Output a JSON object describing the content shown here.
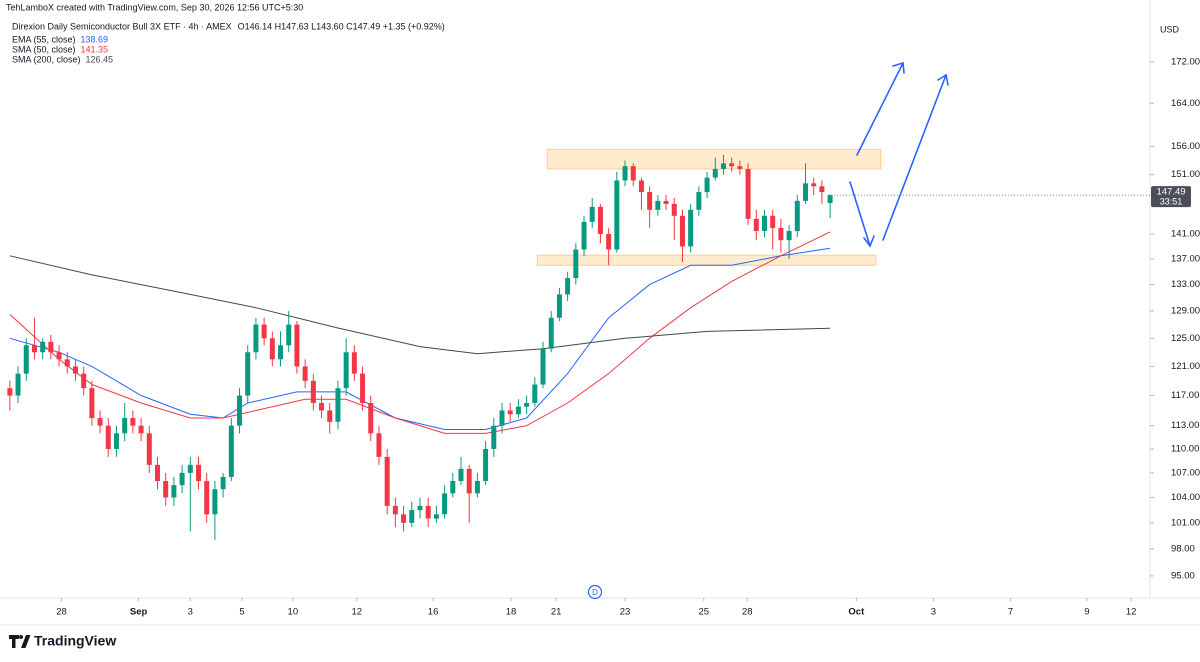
{
  "chart_data": {
    "type": "candlestick",
    "credit": "TehLamboX created with TradingView.com, Sep 30, 2026 12:56 UTC+5:30",
    "title": "Direxion Daily Semiconductor Bull 3X ETF · 4h · AMEX",
    "ohlc_text": "O146.14 H147.63 L143.60 C147.49 +1.35 (+0.92%)",
    "currency": "USD",
    "countdown": "33:51",
    "event_marker": "D",
    "brand": "TradingView",
    "log_scale": true,
    "grid": false,
    "up_color": "#089981",
    "down_color": "#f23645",
    "ylim": [
      92.6,
      181.6
    ],
    "yticks": [
      {
        "value": 172,
        "label": "172.00"
      },
      {
        "value": 164,
        "label": "164.00"
      },
      {
        "value": 156,
        "label": "156.00"
      },
      {
        "value": 151,
        "label": "151.00"
      },
      {
        "value": 141,
        "label": "141.00"
      },
      {
        "value": 137,
        "label": "137.00"
      },
      {
        "value": 133,
        "label": "133.00"
      },
      {
        "value": 129,
        "label": "129.00"
      },
      {
        "value": 125,
        "label": "125.00"
      },
      {
        "value": 121,
        "label": "121.00"
      },
      {
        "value": 117,
        "label": "117.00"
      },
      {
        "value": 113,
        "label": "113.00"
      },
      {
        "value": 110,
        "label": "110.00"
      },
      {
        "value": 107,
        "label": "107.00"
      },
      {
        "value": 104,
        "label": "104.00"
      },
      {
        "value": 101,
        "label": "101.00"
      },
      {
        "value": 98,
        "label": "98.00"
      },
      {
        "value": 95,
        "label": "95.00"
      }
    ],
    "xlim": [
      -1.2,
      139
    ],
    "xticks": [
      {
        "value": 6.3,
        "label": "28"
      },
      {
        "value": 15.7,
        "label": "Sep"
      },
      {
        "value": 22,
        "label": "3"
      },
      {
        "value": 28.3,
        "label": "5"
      },
      {
        "value": 34.5,
        "label": "10"
      },
      {
        "value": 42.3,
        "label": "12"
      },
      {
        "value": 51.6,
        "label": "16"
      },
      {
        "value": 61.1,
        "label": "18"
      },
      {
        "value": 66.6,
        "label": "21"
      },
      {
        "value": 75,
        "label": "23"
      },
      {
        "value": 84.6,
        "label": "25"
      },
      {
        "value": 89.9,
        "label": "28"
      },
      {
        "value": 103.2,
        "label": "Oct"
      },
      {
        "value": 112.6,
        "label": "3"
      },
      {
        "value": 122,
        "label": "7"
      },
      {
        "value": 131.3,
        "label": "9"
      },
      {
        "value": 136.7,
        "label": "12"
      }
    ],
    "open": [
      118,
      117,
      120,
      124,
      123,
      124.5,
      123,
      122,
      121,
      120,
      118,
      114,
      113,
      110,
      112,
      114,
      113,
      112,
      108,
      106,
      104,
      105.5,
      107,
      108,
      106,
      102,
      105,
      106.5,
      113,
      117,
      123,
      127,
      125,
      122,
      124,
      127,
      121,
      119,
      116,
      115,
      113.5,
      118,
      123,
      120,
      116,
      112,
      109,
      103,
      102,
      101,
      102.5,
      103,
      101.5,
      102,
      104.5,
      106,
      107.5,
      104.5,
      106,
      110,
      113,
      115,
      114.5,
      115.5,
      116,
      118.5,
      123.5,
      128,
      131.5,
      134,
      138.5,
      143,
      145.5,
      141,
      138.5,
      150,
      152.5,
      150,
      148,
      145,
      146.5,
      146,
      144,
      139,
      145,
      148,
      150.5,
      152,
      153,
      152.5,
      152,
      143.5,
      141.5,
      144,
      142,
      140,
      141.5,
      146.5,
      149.5,
      149,
      146.14
    ],
    "high": [
      119,
      121,
      125,
      128,
      125,
      125.5,
      124,
      123,
      122,
      121,
      119,
      115,
      114,
      113,
      116,
      115,
      114,
      113,
      109,
      107,
      106.5,
      108,
      109,
      109,
      107,
      106,
      107,
      114,
      118,
      124,
      128,
      128,
      126,
      126,
      129,
      127.5,
      122,
      120,
      117,
      116,
      119,
      125,
      124,
      121,
      117,
      113,
      110,
      104,
      103,
      103.5,
      104,
      104,
      103,
      105.5,
      107,
      109,
      108,
      107,
      111,
      114,
      116,
      116,
      116.5,
      117,
      119.5,
      124.5,
      129,
      132.5,
      135,
      139.5,
      144,
      147,
      146,
      142,
      151.5,
      153.5,
      153,
      150.5,
      149,
      147.5,
      147.5,
      147,
      145,
      146,
      149,
      151.5,
      154,
      154.5,
      154,
      153.5,
      153,
      145,
      145,
      145,
      143.5,
      142.5,
      147.5,
      153,
      150.5,
      150,
      147.63
    ],
    "low": [
      115,
      116,
      119,
      122,
      122,
      122,
      121,
      120,
      119,
      117,
      113,
      112,
      109,
      109,
      111,
      112,
      111,
      107,
      105,
      103,
      103,
      104.5,
      100,
      105,
      101,
      99,
      104,
      106,
      112,
      116,
      122,
      124,
      121,
      121,
      123,
      120,
      118,
      115,
      114,
      112,
      112.5,
      117,
      119,
      115,
      111,
      108,
      102,
      100.5,
      100,
      100.5,
      101.5,
      100.5,
      101,
      101.5,
      104,
      105.5,
      101,
      104,
      105.5,
      109,
      112,
      113.5,
      114,
      114.5,
      115.5,
      118,
      123,
      127.5,
      130.5,
      133,
      137.5,
      142,
      139.5,
      136,
      138,
      149,
      149,
      145,
      142,
      144,
      145,
      140,
      136.5,
      138,
      144,
      147,
      150,
      151,
      151.5,
      151,
      142.5,
      140,
      140.5,
      138.5,
      138,
      137,
      140.5,
      146,
      147.5,
      146,
      143.6
    ],
    "close": [
      117,
      120,
      124,
      123,
      124.5,
      123,
      122,
      121,
      120,
      118,
      114,
      113,
      110,
      112,
      114,
      113,
      112,
      108,
      106,
      104,
      105.5,
      107,
      108,
      106,
      102,
      105,
      106.5,
      113,
      117,
      123,
      127,
      125,
      122,
      124,
      127,
      121,
      119,
      116,
      115,
      113.5,
      118,
      123,
      120,
      116,
      112,
      109,
      103,
      102,
      101,
      102.5,
      103,
      101.5,
      102,
      104.5,
      106,
      107.5,
      104.5,
      106,
      110,
      113,
      115,
      114.5,
      115.5,
      116,
      118.5,
      123.5,
      128,
      131.5,
      134,
      138.5,
      143,
      145.5,
      141,
      138.5,
      150,
      152.5,
      150,
      148,
      145,
      146.5,
      146,
      144,
      139,
      145,
      148,
      150.5,
      152,
      153,
      152.5,
      152,
      143.5,
      141.5,
      144,
      142,
      140,
      141.5,
      146.5,
      149.5,
      149,
      148,
      147.49
    ],
    "series": [
      {
        "name": "EMA (55, close)",
        "color": "#2962ff",
        "x": [
          0,
          6,
          10,
          16,
          22,
          26,
          29,
          35,
          41,
          47,
          53,
          58,
          63,
          68,
          73,
          78,
          83,
          88,
          94,
          100
        ],
        "values": [
          125,
          123,
          121,
          117,
          114.5,
          114,
          116,
          117.5,
          117.5,
          114,
          112.5,
          112.5,
          114,
          120,
          128,
          133,
          136,
          136,
          137.5,
          138.69
        ]
      },
      {
        "name": "SMA (50, close)",
        "color": "#f23645",
        "x": [
          0,
          6,
          10,
          16,
          22,
          26,
          30,
          36,
          41,
          47,
          53,
          58,
          63,
          68,
          73,
          78,
          83,
          88,
          94,
          100
        ],
        "values": [
          128.5,
          122,
          118.5,
          116,
          114,
          114,
          115,
          116.5,
          116.5,
          114,
          112,
          112,
          113,
          116,
          120,
          125,
          129.5,
          133.5,
          137.5,
          141.35
        ]
      },
      {
        "name": "SMA (200, close)",
        "color": "#434651",
        "x": [
          0,
          10,
          20,
          30,
          40,
          50,
          57,
          65,
          75,
          85,
          100
        ],
        "values": [
          137.5,
          134.5,
          132,
          129.5,
          126.5,
          123.8,
          122.8,
          123.5,
          125,
          126,
          126.45
        ]
      }
    ],
    "zones": [
      {
        "color": "#ffb74d",
        "x": [
          65.5,
          106.2
        ],
        "low": 152,
        "high": 155.5
      },
      {
        "color": "#ffb74d",
        "x": [
          64.3,
          105.6
        ],
        "low": 136,
        "high": 137.6
      }
    ]
  }
}
